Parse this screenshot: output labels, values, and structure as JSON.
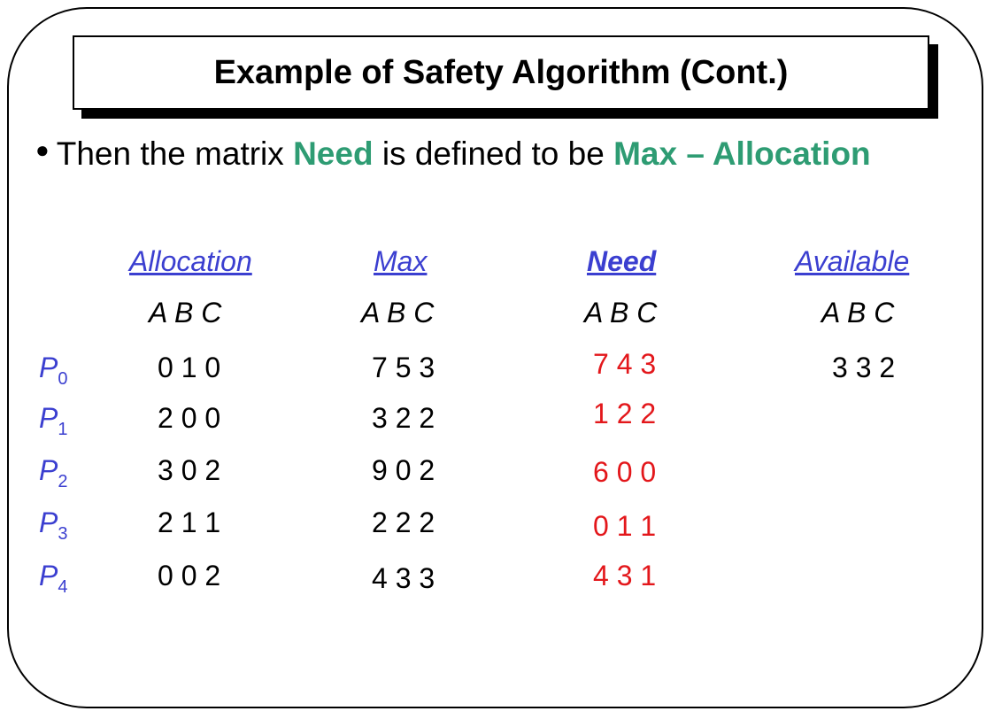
{
  "title": "Example of Safety Algorithm (Cont.)",
  "bullet": {
    "prefix": "Then the matrix ",
    "term1": "Need",
    "middle": " is defined to be ",
    "term2": "Max – Allocation"
  },
  "columns": {
    "allocation": "Allocation",
    "max": "Max",
    "need": "Need",
    "available": "Available"
  },
  "resource_header": "A B C",
  "processes": [
    {
      "name": "P",
      "index": "0",
      "allocation": "0 1 0",
      "max": "7 5 3",
      "need": "7 4 3"
    },
    {
      "name": "P",
      "index": "1",
      "allocation": "2 0 0",
      "max": "3 2 2",
      "need": "1 2 2"
    },
    {
      "name": "P",
      "index": "2",
      "allocation": "3 0 2",
      "max": "9 0 2",
      "need": "6 0 0"
    },
    {
      "name": "P",
      "index": "3",
      "allocation": "2 1 1",
      "max": "2 2 2",
      "need": "0 1 1"
    },
    {
      "name": "P",
      "index": "4",
      "allocation": "0 0 2",
      "max": "4 3 3",
      "need": "4 3 1"
    }
  ],
  "available": "3 3 2",
  "colors": {
    "highlight_green": "#2e9c73",
    "header_blue": "#3b3fd0",
    "need_red": "#e3171b"
  }
}
